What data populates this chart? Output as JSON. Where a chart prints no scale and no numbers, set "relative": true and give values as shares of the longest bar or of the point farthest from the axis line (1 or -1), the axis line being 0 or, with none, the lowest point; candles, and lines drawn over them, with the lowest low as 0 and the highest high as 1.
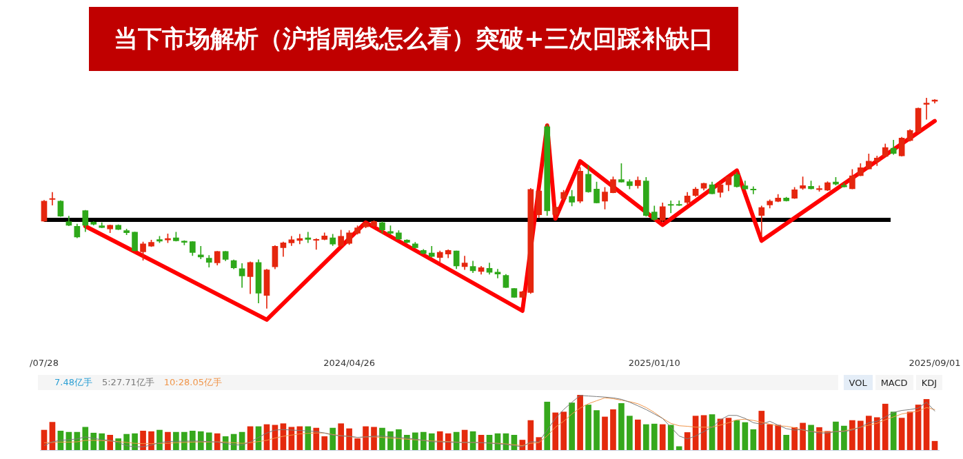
{
  "chart_data": [
    {
      "type": "candlestick",
      "title": "当下市场解析（沪指周线怎么看）突破+三次回踩补缺口",
      "relative": true,
      "categories": [
        "/07/28",
        null,
        null,
        null,
        null,
        null,
        null,
        null,
        null,
        null,
        null,
        null,
        null,
        null,
        null,
        null,
        null,
        null,
        null,
        null,
        null,
        null,
        null,
        null,
        null,
        null,
        null,
        null,
        null,
        null,
        null,
        null,
        null,
        null,
        null,
        null,
        null,
        "2024/04/26",
        null,
        null,
        null,
        null,
        null,
        null,
        null,
        null,
        null,
        null,
        null,
        null,
        null,
        null,
        null,
        null,
        null,
        null,
        null,
        null,
        null,
        null,
        null,
        null,
        null,
        null,
        null,
        null,
        null,
        null,
        null,
        null,
        null,
        null,
        null,
        null,
        "2025/01/10",
        null,
        null,
        null,
        null,
        null,
        null,
        null,
        null,
        null,
        null,
        null,
        null,
        null,
        null,
        null,
        null,
        null,
        null,
        null,
        null,
        null,
        null,
        null,
        null,
        null,
        null,
        null,
        null,
        null,
        null,
        null,
        null,
        null,
        "2025/09/01"
      ],
      "ohlc": [
        [
          0.414,
          0.513,
          0.412,
          0.509
        ],
        [
          0.517,
          0.551,
          0.49,
          0.52
        ],
        [
          0.509,
          0.512,
          0.436,
          0.438
        ],
        [
          0.412,
          0.438,
          0.392,
          0.394
        ],
        [
          0.39,
          0.4,
          0.335,
          0.339
        ],
        [
          0.464,
          0.466,
          0.364,
          0.394
        ],
        [
          0.409,
          0.412,
          0.395,
          0.399
        ],
        [
          0.392,
          0.407,
          0.382,
          0.384
        ],
        [
          0.377,
          0.396,
          0.359,
          0.395
        ],
        [
          0.395,
          0.397,
          0.373,
          0.375
        ],
        [
          0.369,
          0.377,
          0.349,
          0.359
        ],
        [
          0.362,
          0.363,
          0.272,
          0.273
        ],
        [
          0.268,
          0.315,
          0.228,
          0.306
        ],
        [
          0.295,
          0.324,
          0.293,
          0.314
        ],
        [
          0.327,
          0.342,
          0.312,
          0.319
        ],
        [
          0.325,
          0.354,
          0.312,
          0.332
        ],
        [
          0.335,
          0.362,
          0.319,
          0.321
        ],
        [
          0.319,
          0.322,
          0.301,
          0.313
        ],
        [
          0.317,
          0.318,
          0.25,
          0.265
        ],
        [
          0.254,
          0.295,
          0.235,
          0.244
        ],
        [
          0.238,
          0.251,
          0.195,
          0.218
        ],
        [
          0.216,
          0.271,
          0.205,
          0.27
        ],
        [
          0.27,
          0.271,
          0.226,
          0.232
        ],
        [
          0.227,
          0.23,
          0.187,
          0.192
        ],
        [
          0.188,
          0.213,
          0.099,
          0.154
        ],
        [
          0.15,
          0.221,
          0.069,
          0.218
        ],
        [
          0.218,
          0.231,
          0.025,
          0.072
        ],
        [
          0.061,
          0.186,
          0,
          0.183
        ],
        [
          0.197,
          0.298,
          0.187,
          0.295
        ],
        [
          0.288,
          0.315,
          0.246,
          0.311
        ],
        [
          0.311,
          0.342,
          0.298,
          0.326
        ],
        [
          0.322,
          0.352,
          0.306,
          0.332
        ],
        [
          0.335,
          0.362,
          0.312,
          0.327
        ],
        [
          0.323,
          0.332,
          0.28,
          0.325
        ],
        [
          0.327,
          0.359,
          0.325,
          0.344
        ],
        [
          0.335,
          0.352,
          0.298,
          0.305
        ],
        [
          0.298,
          0.372,
          0.293,
          0.342
        ],
        [
          0.308,
          0.369,
          0.303,
          0.359
        ],
        [
          0.357,
          0.392,
          0.352,
          0.382
        ],
        [
          0.387,
          0.409,
          0.382,
          0.405
        ],
        [
          0.392,
          0.417,
          0.387,
          0.413
        ],
        [
          0.407,
          0.412,
          0.357,
          0.372
        ],
        [
          0.365,
          0.392,
          0.352,
          0.357
        ],
        [
          0.359,
          0.369,
          0.327,
          0.329
        ],
        [
          0.324,
          0.327,
          0.31,
          0.313
        ],
        [
          0.306,
          0.314,
          0.286,
          0.288
        ],
        [
          0.275,
          0.28,
          0.258,
          0.261
        ],
        [
          0.263,
          0.295,
          0.243,
          0.246
        ],
        [
          0.241,
          0.273,
          0.22,
          0.266
        ],
        [
          0.258,
          0.278,
          0.24,
          0.275
        ],
        [
          0.273,
          0.273,
          0.188,
          0.201
        ],
        [
          0.198,
          0.248,
          0.184,
          0.215
        ],
        [
          0.199,
          0.224,
          0.169,
          0.178
        ],
        [
          0.175,
          0.2,
          0.162,
          0.193
        ],
        [
          0.19,
          0.215,
          0.162,
          0.171
        ],
        [
          0.172,
          0.186,
          0.144,
          0.163
        ],
        [
          0.156,
          0.161,
          0.098,
          0.099
        ],
        [
          0.094,
          0.095,
          0.051,
          0.052
        ],
        [
          0.052,
          0.081,
          0.05,
          0.079
        ],
        [
          0.075,
          0.57,
          0.07,
          0.565
        ],
        [
          0.444,
          0.56,
          0.432,
          0.558
        ],
        [
          0.863,
          0.873,
          0.441,
          0.463
        ],
        [
          0.446,
          0.491,
          0.432,
          0.481
        ],
        [
          0.521,
          0.561,
          0.511,
          0.551
        ],
        [
          0.531,
          0.561,
          0.486,
          0.504
        ],
        [
          0.509,
          0.67,
          0.501,
          0.652
        ],
        [
          0.637,
          0.68,
          0.551,
          0.553
        ],
        [
          0.567,
          0.6,
          0.5,
          0.501
        ],
        [
          0.509,
          0.575,
          0.471,
          0.553
        ],
        [
          0.549,
          0.625,
          0.548,
          0.612
        ],
        [
          0.612,
          0.688,
          0.599,
          0.6
        ],
        [
          0.602,
          0.612,
          0.567,
          0.583
        ],
        [
          0.583,
          0.625,
          0.57,
          0.608
        ],
        [
          0.605,
          0.622,
          0.437,
          0.441
        ],
        [
          0.458,
          0.486,
          0.417,
          0.422
        ],
        [
          0.417,
          0.501,
          0.412,
          0.483
        ],
        [
          0.494,
          0.511,
          0.453,
          0.489
        ],
        [
          0.494,
          0.511,
          0.488,
          0.489
        ],
        [
          0.503,
          0.551,
          0.496,
          0.534
        ],
        [
          0.536,
          0.575,
          0.531,
          0.567
        ],
        [
          0.57,
          0.595,
          0.561,
          0.594
        ],
        [
          0.587,
          0.6,
          0.543,
          0.544
        ],
        [
          0.551,
          0.6,
          0.528,
          0.587
        ],
        [
          0.587,
          0.626,
          0.558,
          0.625
        ],
        [
          0.635,
          0.645,
          0.575,
          0.578
        ],
        [
          0.582,
          0.605,
          0.563,
          0.567
        ],
        [
          0.565,
          0.578,
          0.543,
          0.562
        ],
        [
          0.441,
          0.486,
          0.342,
          0.479
        ],
        [
          0.491,
          0.516,
          0.476,
          0.509
        ],
        [
          0.508,
          0.541,
          0.506,
          0.524
        ],
        [
          0.524,
          0.528,
          0.509,
          0.511
        ],
        [
          0.523,
          0.575,
          0.521,
          0.563
        ],
        [
          0.57,
          0.625,
          0.565,
          0.583
        ],
        [
          0.58,
          0.605,
          0.566,
          0.568
        ],
        [
          0.564,
          0.582,
          0.556,
          0.568
        ],
        [
          0.561,
          0.602,
          0.559,
          0.597
        ],
        [
          0.6,
          0.622,
          0.585,
          0.59
        ],
        [
          0.585,
          0.595,
          0.575,
          0.577
        ],
        [
          0.568,
          0.66,
          0.567,
          0.63
        ],
        [
          0.63,
          0.688,
          0.629,
          0.668
        ],
        [
          0.662,
          0.734,
          0.661,
          0.699
        ],
        [
          0.699,
          0.724,
          0.678,
          0.714
        ],
        [
          0.722,
          0.781,
          0.721,
          0.764
        ],
        [
          0.761,
          0.799,
          0.731,
          0.736
        ],
        [
          0.724,
          0.813,
          0.723,
          0.809
        ],
        [
          0.797,
          0.85,
          0.794,
          0.845
        ],
        [
          0.838,
          0.952,
          0.836,
          0.951
        ],
        [
          0.969,
          1,
          0.898,
          0.975
        ],
        [
          0.984,
          0.992,
          0.975,
          0.99
        ]
      ],
      "series": [
        {
          "type": "line",
          "color": "#ff0000",
          "values": [
            null,
            null,
            null,
            null,
            null,
            0.39,
            null,
            null,
            null,
            null,
            null,
            null,
            null,
            null,
            null,
            null,
            null,
            null,
            null,
            null,
            null,
            null,
            null,
            null,
            null,
            null,
            null,
            -0.054,
            null,
            null,
            null,
            null,
            null,
            null,
            null,
            null,
            null,
            null,
            null,
            0.408,
            null,
            null,
            null,
            null,
            null,
            null,
            null,
            null,
            null,
            null,
            null,
            null,
            null,
            null,
            null,
            null,
            null,
            null,
            -0.012,
            null,
            null,
            0.869,
            0.426,
            null,
            null,
            0.699,
            null,
            null,
            null,
            null,
            null,
            null,
            null,
            null,
            null,
            0.396,
            null,
            null,
            null,
            null,
            null,
            null,
            null,
            null,
            0.655,
            null,
            null,
            0.321,
            null,
            null,
            null,
            null,
            null,
            null,
            null,
            null,
            null,
            null,
            null,
            null,
            null,
            null,
            null,
            null,
            null,
            null,
            null,
            null,
            0.89
          ]
        }
      ],
      "ref_lines": [
        {
          "axis": "y",
          "value": 0.42,
          "color": "#000000"
        }
      ]
    },
    {
      "type": "bar",
      "relative": true,
      "legend": "top left",
      "categories": [
        null,
        null,
        null,
        null,
        null,
        null,
        null,
        null,
        null,
        null,
        null,
        null,
        null,
        null,
        null,
        null,
        null,
        null,
        null,
        null,
        null,
        null,
        null,
        null,
        null,
        null,
        null,
        null,
        null,
        null,
        null,
        null,
        null,
        null,
        null,
        null,
        null,
        null,
        null,
        null,
        null,
        null,
        null,
        null,
        null,
        null,
        null,
        null,
        null,
        null,
        null,
        null,
        null,
        null,
        null,
        null,
        null,
        null,
        null,
        null,
        null,
        null,
        null,
        null,
        null,
        null,
        null,
        null,
        null,
        null,
        null,
        null,
        null,
        null,
        null,
        null,
        null,
        null,
        null,
        null,
        null,
        null,
        null,
        null,
        null,
        null,
        null,
        null,
        null,
        null,
        null,
        null,
        null,
        null,
        null,
        null,
        null,
        null,
        null,
        null,
        null,
        null,
        null,
        null,
        null,
        null,
        null,
        null,
        null
      ],
      "annotations": [
        "7.48亿手",
        "VOL",
        "MACD",
        "KDJ"
      ],
      "series": [
        {
          "type": "bar",
          "colors": [
            "#e42a0d",
            "#e42a0d",
            "#36a81c",
            "#36a81c",
            "#36a81c",
            "#36a81c",
            "#36a81c",
            "#36a81c",
            "#e42a0d",
            "#36a81c",
            "#36a81c",
            "#36a81c",
            "#e42a0d",
            "#e42a0d",
            "#36a81c",
            "#e42a0d",
            "#36a81c",
            "#36a81c",
            "#36a81c",
            "#36a81c",
            "#36a81c",
            "#e42a0d",
            "#36a81c",
            "#36a81c",
            "#36a81c",
            "#e42a0d",
            "#36a81c",
            "#e42a0d",
            "#e42a0d",
            "#e42a0d",
            "#e42a0d",
            "#e42a0d",
            "#36a81c",
            "#e42a0d",
            "#e42a0d",
            "#36a81c",
            "#e42a0d",
            "#e42a0d",
            "#e42a0d",
            "#e42a0d",
            "#e42a0d",
            "#36a81c",
            "#36a81c",
            "#36a81c",
            "#36a81c",
            "#36a81c",
            "#36a81c",
            "#36a81c",
            "#e42a0d",
            "#e42a0d",
            "#36a81c",
            "#e42a0d",
            "#36a81c",
            "#e42a0d",
            "#36a81c",
            "#36a81c",
            "#36a81c",
            "#36a81c",
            "#e42a0d",
            "#e42a0d",
            "#e42a0d",
            "#36a81c",
            "#e42a0d",
            "#e42a0d",
            "#36a81c",
            "#e42a0d",
            "#36a81c",
            "#36a81c",
            "#e42a0d",
            "#e42a0d",
            "#36a81c",
            "#36a81c",
            "#e42a0d",
            "#36a81c",
            "#36a81c",
            "#e42a0d",
            "#36a81c",
            "#36a81c",
            "#e42a0d",
            "#e42a0d",
            "#e42a0d",
            "#36a81c",
            "#e42a0d",
            "#e42a0d",
            "#36a81c",
            "#36a81c",
            "#36a81c",
            "#e42a0d",
            "#e42a0d",
            "#e42a0d",
            "#36a81c",
            "#e42a0d",
            "#e42a0d",
            "#36a81c",
            "#e42a0d",
            "#e42a0d",
            "#36a81c",
            "#36a81c",
            "#e42a0d",
            "#e42a0d",
            "#e42a0d",
            "#e42a0d",
            "#e42a0d",
            "#36a81c",
            "#e42a0d",
            "#e42a0d",
            "#e42a0d",
            "#e42a0d",
            "#e42a0d"
          ],
          "values": [
            0.362,
            0.505,
            0.346,
            0.324,
            0.324,
            0.415,
            0.309,
            0.298,
            0.271,
            0.207,
            0.287,
            0.298,
            0.346,
            0.335,
            0.362,
            0.324,
            0.324,
            0.324,
            0.346,
            0.335,
            0.314,
            0.298,
            0.245,
            0.287,
            0.324,
            0.426,
            0.426,
            0.463,
            0.452,
            0.479,
            0.415,
            0.426,
            0.426,
            0.399,
            0.245,
            0.399,
            0.479,
            0.388,
            0.207,
            0.426,
            0.415,
            0.399,
            0.335,
            0.372,
            0.271,
            0.314,
            0.324,
            0.298,
            0.335,
            0.298,
            0.324,
            0.362,
            0.335,
            0.271,
            0.271,
            0.298,
            0.298,
            0.271,
            0.181,
            0.537,
            0.229,
            0.872,
            0.676,
            0.691,
            0.856,
            1,
            0.819,
            0.718,
            0.601,
            0.734,
            0.846,
            0.617,
            0.548,
            0.463,
            0.473,
            0.463,
            0.452,
            0.064,
            0.319,
            0.617,
            0.628,
            0.644,
            0.564,
            0.58,
            0.537,
            0.5,
            0.372,
            0.707,
            0.463,
            0.452,
            0.271,
            0.41,
            0.489,
            0.452,
            0.41,
            0.34,
            0.511,
            0.436,
            0.537,
            0.527,
            0.617,
            0.59,
            0.835,
            0.691,
            0.58,
            0.691,
            0.819,
            0.92,
            0.16
          ]
        },
        {
          "type": "line",
          "name": "5:27.71亿手",
          "color": "#7a7a7a",
          "values": [
            0.08,
            0.149,
            0.176,
            0.186,
            0.202,
            0.239,
            0.213,
            0.186,
            0.176,
            0.133,
            0.08,
            0.059,
            0.059,
            0.09,
            0.133,
            0.154,
            0.16,
            0.16,
            0.165,
            0.16,
            0.154,
            0.144,
            0.122,
            0.096,
            0.09,
            0.149,
            0.229,
            0.309,
            0.362,
            0.372,
            0.362,
            0.356,
            0.346,
            0.335,
            0.309,
            0.271,
            0.255,
            0.25,
            0.229,
            0.239,
            0.25,
            0.255,
            0.239,
            0.229,
            0.218,
            0.197,
            0.176,
            0.149,
            0.149,
            0.144,
            0.138,
            0.138,
            0.138,
            0.133,
            0.128,
            0.112,
            0.101,
            0.08,
            0.059,
            0.149,
            0.149,
            0.362,
            0.574,
            0.734,
            0.867,
            0.99,
            0.98,
            0.97,
            0.96,
            0.947,
            0.92,
            0.867,
            0.803,
            0.734,
            0.654,
            0.574,
            0.415,
            0.255,
            0.202,
            0.255,
            0.335,
            0.415,
            0.548,
            0.628,
            0.628,
            0.574,
            0.495,
            0.468,
            0.521,
            0.452,
            0.388,
            0.362,
            0.372,
            0.335,
            0.309,
            0.309,
            0.335,
            0.335,
            0.362,
            0.415,
            0.495,
            0.521,
            0.601,
            0.681,
            0.718,
            0.734,
            0.761,
            0.867,
            0.707
          ]
        },
        {
          "type": "line",
          "name": "10:28.05亿手",
          "color": "#f0954a",
          "values": [
            0.133,
            0.138,
            0.144,
            0.144,
            0.149,
            0.176,
            0.176,
            0.17,
            0.165,
            0.154,
            0.138,
            0.122,
            0.117,
            0.117,
            0.122,
            0.122,
            0.133,
            0.138,
            0.144,
            0.149,
            0.144,
            0.149,
            0.144,
            0.133,
            0.122,
            0.133,
            0.154,
            0.176,
            0.218,
            0.25,
            0.271,
            0.293,
            0.303,
            0.309,
            0.309,
            0.282,
            0.261,
            0.245,
            0.229,
            0.239,
            0.239,
            0.229,
            0.218,
            0.207,
            0.197,
            0.186,
            0.176,
            0.165,
            0.16,
            0.154,
            0.144,
            0.138,
            0.138,
            0.133,
            0.128,
            0.122,
            0.112,
            0.096,
            0.08,
            0.122,
            0.133,
            0.255,
            0.415,
            0.521,
            0.654,
            0.761,
            0.84,
            0.894,
            0.947,
            0.931,
            0.904,
            0.878,
            0.84,
            0.771,
            0.681,
            0.574,
            0.484,
            0.441,
            0.431,
            0.415,
            0.415,
            0.415,
            0.452,
            0.495,
            0.548,
            0.559,
            0.537,
            0.505,
            0.468,
            0.441,
            0.431,
            0.404,
            0.362,
            0.335,
            0.335,
            0.324,
            0.335,
            0.346,
            0.378,
            0.415,
            0.452,
            0.484,
            0.548,
            0.601,
            0.654,
            0.681,
            0.707,
            0.771,
            0.734
          ]
        }
      ]
    }
  ]
}
